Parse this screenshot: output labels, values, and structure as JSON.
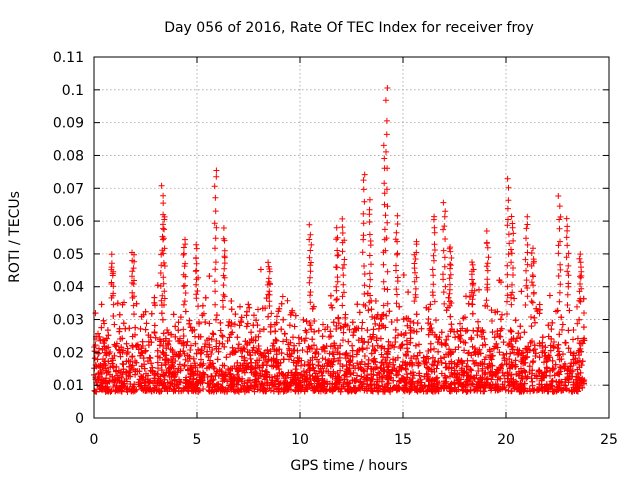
{
  "chart_data": {
    "type": "scatter",
    "title": "Day 056 of 2016, Rate Of TEC Index for receiver froy",
    "xlabel": "GPS time / hours",
    "ylabel": "ROTI / TECUs",
    "xlim": [
      0,
      25
    ],
    "ylim": [
      0,
      0.11
    ],
    "xticks": [
      0,
      5,
      10,
      15,
      20,
      25
    ],
    "xtick_labels": [
      "0",
      "5",
      "10",
      "15",
      "20",
      "25"
    ],
    "yticks": [
      0,
      0.01,
      0.02,
      0.03,
      0.04,
      0.05,
      0.06,
      0.07,
      0.08,
      0.09,
      0.1,
      0.11
    ],
    "ytick_labels": [
      "0",
      "0.01",
      "0.02",
      "0.03",
      "0.04",
      "0.05",
      "0.06",
      "0.07",
      "0.08",
      "0.09",
      "0.1",
      "0.11"
    ],
    "grid": true,
    "marker": "+",
    "series_color": "#ff0000",
    "series": [
      {
        "name": "ROTI",
        "note": "dense cloud of + markers from 0 to ~23.8 h, bulk between 0.005 and 0.035 TECU/s; notable peaks listed",
        "x_range": [
          0,
          23.8
        ],
        "typical_y_range": [
          0.005,
          0.035
        ],
        "peaks": [
          {
            "x": 0.9,
            "y": 0.049
          },
          {
            "x": 1.9,
            "y": 0.051
          },
          {
            "x": 3.3,
            "y": 0.071
          },
          {
            "x": 3.4,
            "y": 0.062
          },
          {
            "x": 4.4,
            "y": 0.055
          },
          {
            "x": 5.0,
            "y": 0.052
          },
          {
            "x": 5.9,
            "y": 0.076
          },
          {
            "x": 6.3,
            "y": 0.057
          },
          {
            "x": 8.5,
            "y": 0.047
          },
          {
            "x": 10.5,
            "y": 0.058
          },
          {
            "x": 11.8,
            "y": 0.057
          },
          {
            "x": 12.1,
            "y": 0.061
          },
          {
            "x": 13.1,
            "y": 0.075
          },
          {
            "x": 13.4,
            "y": 0.066
          },
          {
            "x": 14.2,
            "y": 0.101
          },
          {
            "x": 14.1,
            "y": 0.083
          },
          {
            "x": 14.7,
            "y": 0.061
          },
          {
            "x": 15.6,
            "y": 0.054
          },
          {
            "x": 16.5,
            "y": 0.062
          },
          {
            "x": 17.0,
            "y": 0.066
          },
          {
            "x": 17.3,
            "y": 0.053
          },
          {
            "x": 18.4,
            "y": 0.048
          },
          {
            "x": 19.1,
            "y": 0.056
          },
          {
            "x": 20.1,
            "y": 0.073
          },
          {
            "x": 20.3,
            "y": 0.062
          },
          {
            "x": 21.0,
            "y": 0.061
          },
          {
            "x": 21.3,
            "y": 0.052
          },
          {
            "x": 22.6,
            "y": 0.067
          },
          {
            "x": 23.0,
            "y": 0.061
          },
          {
            "x": 23.6,
            "y": 0.05
          }
        ]
      }
    ]
  }
}
